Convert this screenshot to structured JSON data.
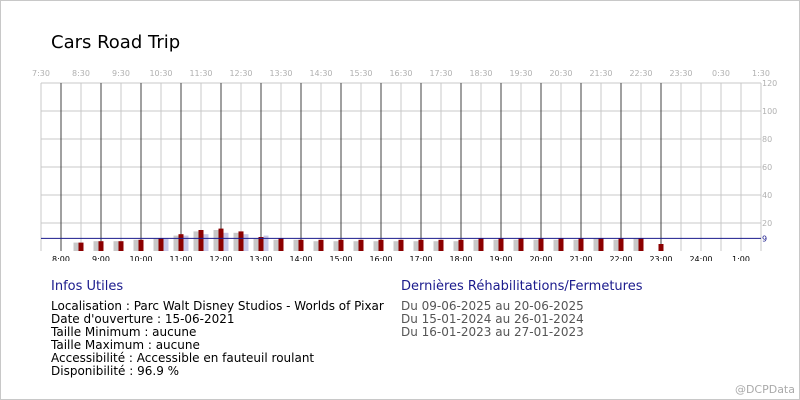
{
  "chart_data": {
    "type": "bar",
    "title": "Cars Road Trip",
    "bottom_ticks": [
      "8:00",
      "9:00",
      "10:00",
      "11:00",
      "12:00",
      "13:00",
      "14:00",
      "15:00",
      "16:00",
      "17:00",
      "18:00",
      "19:00",
      "20:00",
      "21:00",
      "22:00",
      "23:00",
      "24:00",
      "1:00"
    ],
    "top_ticks": [
      "7:30",
      "8:30",
      "9:30",
      "10:30",
      "11:30",
      "12:30",
      "13:30",
      "14:30",
      "15:30",
      "16:30",
      "17:30",
      "18:30",
      "19:30",
      "20:30",
      "21:30",
      "22:30",
      "23:30",
      "0:30",
      "1:30"
    ],
    "y_ticks": [
      20,
      40,
      60,
      80,
      100,
      120
    ],
    "ylim": [
      0,
      120
    ],
    "reference_line": {
      "value": 9,
      "label": "9"
    },
    "grid": true,
    "x_slots": [
      "8:30",
      "9:00",
      "9:30",
      "10:00",
      "10:30",
      "11:00",
      "11:30",
      "12:00",
      "12:30",
      "13:00",
      "13:30",
      "14:00",
      "14:30",
      "15:00",
      "15:30",
      "16:00",
      "16:30",
      "17:00",
      "17:30",
      "18:00",
      "18:30",
      "19:00",
      "19:30",
      "20:00",
      "20:30",
      "21:00",
      "21:30",
      "22:00",
      "22:30",
      "23:00"
    ],
    "series": [
      {
        "values": [
          6,
          7,
          7,
          8,
          9,
          11,
          14,
          15,
          13,
          9,
          8,
          8,
          7,
          7,
          7,
          7,
          7,
          7,
          7,
          7,
          8,
          8,
          8,
          8,
          8,
          8,
          9,
          8,
          9,
          0
        ]
      },
      {
        "values": [
          6,
          7,
          7,
          8,
          9,
          12,
          15,
          16,
          14,
          10,
          9,
          8,
          8,
          8,
          8,
          8,
          8,
          8,
          8,
          8,
          9,
          9,
          9,
          9,
          9,
          9,
          9,
          9,
          9,
          5
        ]
      },
      {
        "values": [
          0,
          0,
          0,
          0,
          9,
          11,
          12,
          13,
          12,
          11,
          0,
          0,
          0,
          0,
          0,
          0,
          0,
          0,
          0,
          0,
          0,
          0,
          0,
          0,
          0,
          0,
          0,
          0,
          0,
          0
        ]
      }
    ],
    "colors": {
      "series": [
        "#c8c8c8",
        "#8b0000",
        "#c8c8e8"
      ],
      "reference_line": "#1a1a8c",
      "major_grid": "#404040",
      "minor_grid": "#c8c8c8",
      "tick_text": "#000000",
      "top_tick_text": "#b0b0b0",
      "y_tick_text": "#b0b0b0"
    }
  },
  "infos": {
    "heading": "Infos Utiles",
    "lines": [
      "Localisation : Parc Walt Disney Studios - Worlds of Pixar",
      "Date d'ouverture : 15-06-2021",
      "Taille Minimum : aucune",
      "Taille Maximum : aucune",
      "Accessibilité : Accessible en fauteuil roulant",
      "Disponibilité : 96.9 %"
    ]
  },
  "closures": {
    "heading": "Dernières Réhabilitations/Fermetures",
    "lines": [
      "Du 09-06-2025 au 20-06-2025",
      "Du 15-01-2024 au 26-01-2024",
      "Du 16-01-2023 au 27-01-2023"
    ]
  },
  "credit": "@DCPData"
}
